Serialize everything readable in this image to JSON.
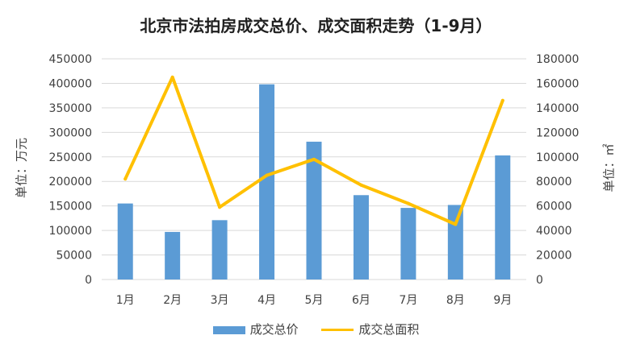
{
  "chart_data": {
    "type": "bar",
    "title": "北京市法拍房成交总价、成交面积走势（1-9月）",
    "categories": [
      "1月",
      "2月",
      "3月",
      "4月",
      "5月",
      "6月",
      "7月",
      "8月",
      "9月"
    ],
    "series": [
      {
        "name": "成交总价",
        "type": "bar",
        "axis": "left",
        "color": "#5B9BD5",
        "values": [
          155000,
          97000,
          121000,
          398000,
          281000,
          172000,
          146000,
          152000,
          253000
        ]
      },
      {
        "name": "成交总面积",
        "type": "line",
        "axis": "right",
        "color": "#FFC000",
        "values": [
          82000,
          165000,
          59000,
          85000,
          98000,
          77000,
          62000,
          45000,
          146000
        ]
      }
    ],
    "ylabel_left": "单位：万元",
    "ylabel_right": "单位：㎡",
    "ylim_left": [
      0,
      450000
    ],
    "ylim_right": [
      0,
      180000
    ],
    "yticks_left": [
      "0",
      "50000",
      "100000",
      "150000",
      "200000",
      "250000",
      "300000",
      "350000",
      "400000",
      "450000"
    ],
    "yticks_right": [
      "0",
      "20000",
      "40000",
      "60000",
      "80000",
      "100000",
      "120000",
      "140000",
      "160000",
      "180000"
    ],
    "grid": true,
    "legend_position": "bottom"
  }
}
